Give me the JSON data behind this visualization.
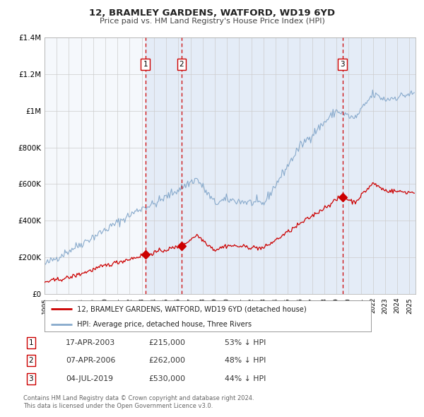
{
  "title": "12, BRAMLEY GARDENS, WATFORD, WD19 6YD",
  "subtitle": "Price paid vs. HM Land Registry's House Price Index (HPI)",
  "ylim": [
    0,
    1400000
  ],
  "yticks": [
    0,
    200000,
    400000,
    600000,
    800000,
    1000000,
    1200000,
    1400000
  ],
  "ytick_labels": [
    "£0",
    "£200K",
    "£400K",
    "£600K",
    "£800K",
    "£1M",
    "£1.2M",
    "£1.4M"
  ],
  "xlim_start": 1995.0,
  "xlim_end": 2025.5,
  "xticks": [
    1995,
    1996,
    1997,
    1998,
    1999,
    2000,
    2001,
    2002,
    2003,
    2004,
    2005,
    2006,
    2007,
    2008,
    2009,
    2010,
    2011,
    2012,
    2013,
    2014,
    2015,
    2016,
    2017,
    2018,
    2019,
    2020,
    2021,
    2022,
    2023,
    2024,
    2025
  ],
  "red_line_color": "#cc0000",
  "blue_line_color": "#88aacc",
  "grid_color": "#cccccc",
  "bg_color": "#f5f8fc",
  "shade_color": "#dde8f5",
  "transactions": [
    {
      "num": 1,
      "date": "17-APR-2003",
      "year": 2003.29,
      "price": 215000,
      "pct": "53%",
      "dir": "↓"
    },
    {
      "num": 2,
      "date": "07-APR-2006",
      "year": 2006.27,
      "price": 262000,
      "pct": "48%",
      "dir": "↓"
    },
    {
      "num": 3,
      "date": "04-JUL-2019",
      "year": 2019.5,
      "price": 530000,
      "pct": "44%",
      "dir": "↓"
    }
  ],
  "legend_label_red": "12, BRAMLEY GARDENS, WATFORD, WD19 6YD (detached house)",
  "legend_label_blue": "HPI: Average price, detached house, Three Rivers",
  "footer1": "Contains HM Land Registry data © Crown copyright and database right 2024.",
  "footer2": "This data is licensed under the Open Government Licence v3.0."
}
